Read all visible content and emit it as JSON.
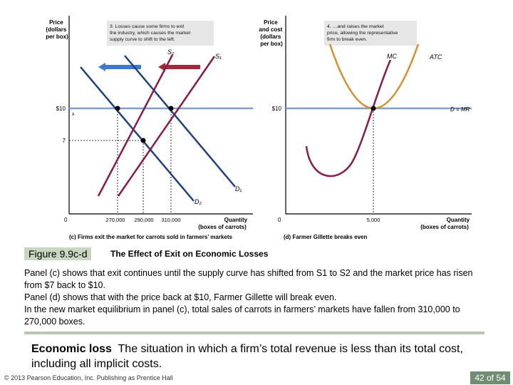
{
  "panel_c": {
    "y_axis_label": [
      "Price",
      "(dollars",
      "per box)"
    ],
    "note": [
      "3. Losses cause some firms to exit",
      "the industry, which causes the market",
      "supply curve to shift to the left."
    ],
    "curve_s2": "S₂",
    "curve_s1": "S₁",
    "curve_d1": "D₁",
    "curve_d2": "D₂",
    "price_10": "$10",
    "price_7": "7",
    "point_a": "A",
    "origin": "0",
    "x_ticks": [
      "270,000",
      "290,000",
      "310,000"
    ],
    "x_axis_label": [
      "Quantity",
      "(boxes of carrots)"
    ],
    "caption": "(c) Firms exit the market for carrots sold in farmers’ markets"
  },
  "panel_d": {
    "y_axis_label": [
      "Price",
      "and cost",
      "(dollars",
      "per box)"
    ],
    "note": [
      "4. …and raises the market",
      "price, allowing the representative",
      "firm to break even."
    ],
    "curve_mc": "MC",
    "curve_atc": "ATC",
    "curve_dmr": "D = MR",
    "price_10": "$10",
    "origin": "0",
    "x_tick": "5,000",
    "x_axis_label": [
      "Quantity",
      "(boxes of carrots)"
    ],
    "caption": "(d) Farmer Gillette breaks even"
  },
  "caption": {
    "figure_label": "Figure 9.9c-d",
    "title": "The Effect of Exit on Economic Losses"
  },
  "description": [
    "Panel (c) shows that exit continues until the supply curve has shifted from S1 to S2 and the market price has risen from $7 back to $10.",
    "Panel (d) shows that with the price back at $10, Farmer Gillette will break even.",
    "In the new market equilibrium in panel (c), total sales of carrots in farmers’ markets have fallen from 310,000 to 270,000 boxes."
  ],
  "definition": {
    "term": "Economic loss",
    "text": "The situation in which a firm’s total revenue is less than its total cost, including all implicit costs."
  },
  "footer": {
    "copyright": "© 2013 Pearson Education, Inc. Publishing as Prentice Hall",
    "page": "42 of 54"
  },
  "colors": {
    "supply": "#8b1a4a",
    "demand": "#1f3f86",
    "price_line": "#7d9fc9",
    "atc": "#e08a2a",
    "arrow_blue": "#3c79c9",
    "arrow_red": "#a3283a",
    "note_bg": "#e6e6e6"
  }
}
